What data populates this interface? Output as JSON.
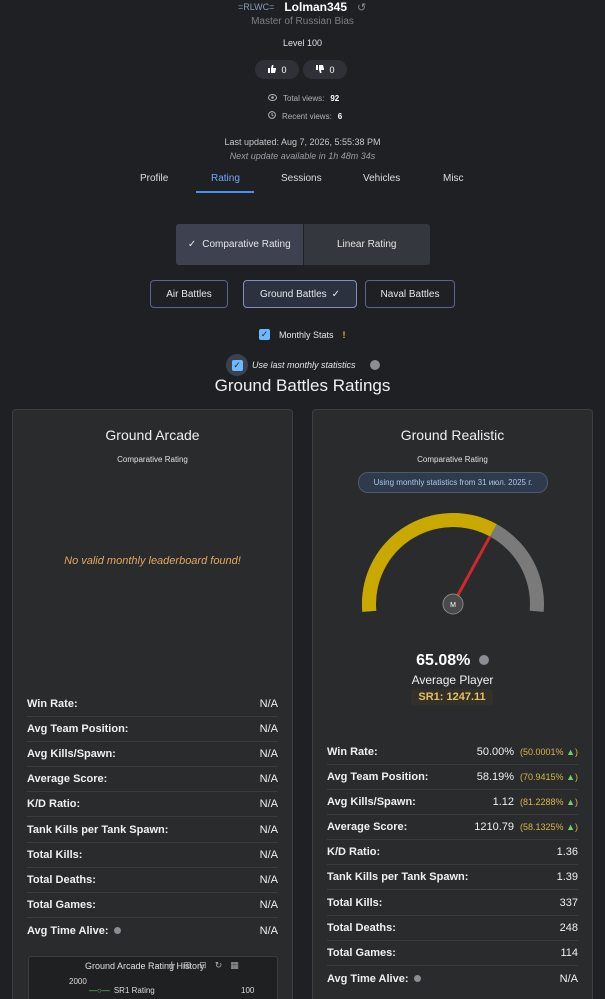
{
  "profile": {
    "squad_tag": "=RLWC=",
    "username": "Lolman345",
    "title": "Master of Russian Bias",
    "level": "Level 100",
    "likes": "0",
    "dislikes": "0",
    "total_views_label": "Total views:",
    "total_views": "92",
    "recent_views_label": "Recent views:",
    "recent_views": "6",
    "last_updated": "Last updated: Aug 7, 2026, 5:55:38 PM",
    "next_update": "Next update available in 1h 48m 34s"
  },
  "tabs": [
    {
      "label": "Profile"
    },
    {
      "label": "Rating"
    },
    {
      "label": "Sessions"
    },
    {
      "label": "Vehicles"
    },
    {
      "label": "Misc"
    }
  ],
  "rating_toggle": {
    "comparative": "Comparative Rating",
    "linear": "Linear Rating"
  },
  "battle_types": {
    "air": "Air Battles",
    "ground": "Ground Battles",
    "naval": "Naval Battles"
  },
  "options": {
    "monthly_stats": "Monthly Stats",
    "use_last_monthly": "Use last monthly statistics"
  },
  "section_title": "Ground Battles Ratings",
  "arcade": {
    "title": "Ground Arcade",
    "subtitle": "Comparative Rating",
    "no_data": "No valid monthly leaderboard found!",
    "history_title": "Ground Arcade Rating History",
    "history_y_label": "2000",
    "history_legend": "SR1 Rating",
    "history_right_label": "100",
    "stats": [
      {
        "label": "Win Rate:",
        "value": "N/A"
      },
      {
        "label": "Avg Team Position:",
        "value": "N/A"
      },
      {
        "label": "Avg Kills/Spawn:",
        "value": "N/A"
      },
      {
        "label": "Average Score:",
        "value": "N/A"
      },
      {
        "label": "K/D Ratio:",
        "value": "N/A"
      },
      {
        "label": "Tank Kills per Tank Spawn:",
        "value": "N/A"
      },
      {
        "label": "Total Kills:",
        "value": "N/A"
      },
      {
        "label": "Total Deaths:",
        "value": "N/A"
      },
      {
        "label": "Total Games:",
        "value": "N/A"
      },
      {
        "label": "Avg Time Alive:",
        "value": "N/A"
      }
    ]
  },
  "realistic": {
    "title": "Ground Realistic",
    "subtitle": "Comparative Rating",
    "monthly_note": "Using monthly statistics from 31 июл. 2025 г.",
    "gauge_fraction": 0.6508,
    "gauge_marker": "M",
    "percent": "65.08%",
    "tier": "Average Player",
    "sr1": "SR1: 1247.11",
    "stats": [
      {
        "label": "Win Rate:",
        "value": "50.00%",
        "pct": "(50.0001%"
      },
      {
        "label": "Avg Team Position:",
        "value": "58.19%",
        "pct": "(70.9415%"
      },
      {
        "label": "Avg Kills/Spawn:",
        "value": "1.12",
        "pct": "(81.2288%"
      },
      {
        "label": "Average Score:",
        "value": "1210.79",
        "pct": "(58.1325%"
      },
      {
        "label": "K/D Ratio:",
        "value": "1.36"
      },
      {
        "label": "Tank Kills per Tank Spawn:",
        "value": "1.39"
      },
      {
        "label": "Total Kills:",
        "value": "337"
      },
      {
        "label": "Total Deaths:",
        "value": "248"
      },
      {
        "label": "Total Games:",
        "value": "114"
      },
      {
        "label": "Avg Time Alive:",
        "value": "N/A"
      }
    ]
  },
  "colors": {
    "accent": "#4a8ef0",
    "gauge_fill": "#c9a800",
    "gauge_track": "#7a7a7a",
    "needle": "#d0282c",
    "warning": "#f0b020"
  }
}
